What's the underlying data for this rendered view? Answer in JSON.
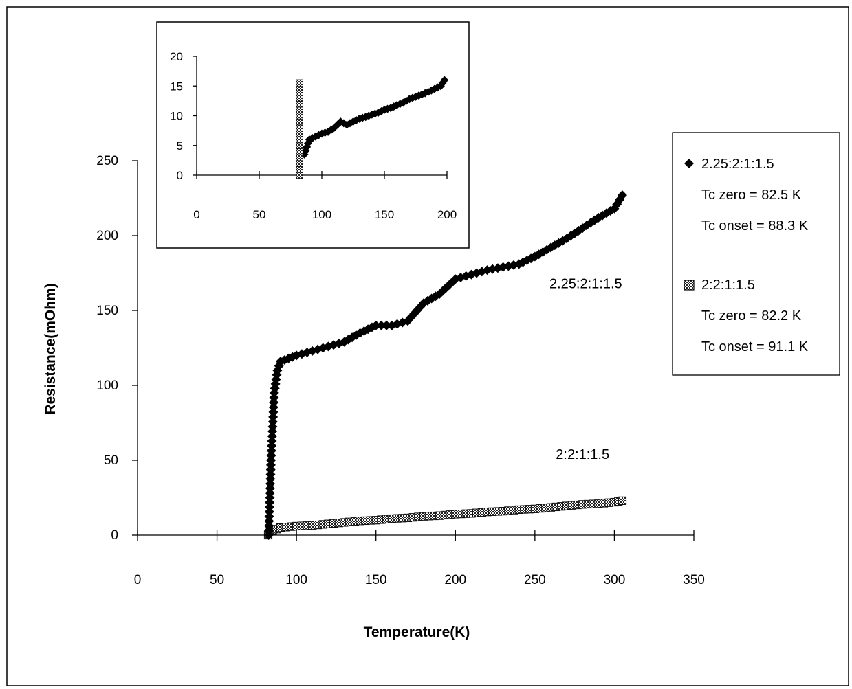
{
  "chart_data": [
    {
      "type": "scatter",
      "xlabel": "Temperature(K)",
      "ylabel": "Resistance(mOhm)",
      "xlim": [
        0,
        350
      ],
      "ylim": [
        0,
        250
      ],
      "xticks": [
        0,
        50,
        100,
        150,
        200,
        250,
        300,
        350
      ],
      "yticks": [
        0,
        50,
        100,
        150,
        200,
        250
      ],
      "legend": {
        "position": "right",
        "entries": [
          {
            "marker": "diamond",
            "label": "2.25:2:1:1.5",
            "tc_zero": "Tc zero = 82.5 K",
            "tc_onset": "Tc onset = 88.3 K"
          },
          {
            "marker": "hatched-square",
            "label": "2:2:1:1.5",
            "tc_zero": "Tc zero = 82.2 K",
            "tc_onset": "Tc onset = 91.1 K"
          }
        ]
      },
      "annotations": [
        {
          "text": "2.25:2:1:1.5",
          "x": 282,
          "y": 165
        },
        {
          "text": "2:2:1:1.5",
          "x": 280,
          "y": 51
        }
      ],
      "series": [
        {
          "name": "2.25:2:1:1.5",
          "marker": "diamond",
          "x": [
            82.5,
            84,
            86,
            88,
            90,
            95,
            100,
            110,
            120,
            130,
            140,
            150,
            160,
            170,
            180,
            190,
            200,
            210,
            220,
            230,
            240,
            250,
            260,
            270,
            280,
            290,
            300,
            305
          ],
          "y": [
            0,
            50,
            95,
            110,
            116,
            118,
            120,
            123,
            126,
            129,
            135,
            140,
            140,
            143,
            155,
            161,
            171,
            174,
            177,
            179,
            181,
            186,
            192,
            198,
            205,
            212,
            218,
            227
          ]
        },
        {
          "name": "2:2:1:1.5",
          "marker": "hatched-square",
          "x": [
            82.2,
            85,
            90,
            100,
            110,
            120,
            130,
            140,
            150,
            160,
            170,
            180,
            190,
            200,
            210,
            220,
            230,
            240,
            250,
            260,
            270,
            280,
            290,
            300,
            305
          ],
          "y": [
            0,
            3,
            5,
            6,
            6.5,
            7.5,
            8.5,
            9.5,
            10,
            11,
            11.5,
            12.5,
            13,
            14,
            14.5,
            15.5,
            16,
            17,
            17.5,
            18.5,
            19.5,
            20.5,
            21,
            22,
            23
          ]
        }
      ]
    },
    {
      "type": "scatter",
      "role": "inset",
      "xlim": [
        0,
        200
      ],
      "ylim": [
        0,
        20
      ],
      "xticks": [
        0,
        50,
        100,
        150,
        200
      ],
      "yticks": [
        0,
        5,
        10,
        15,
        20
      ],
      "series": [
        {
          "name": "2.25:2:1:1.5",
          "marker": "diamond",
          "x": [
            86,
            90,
            95,
            100,
            105,
            110,
            115,
            120,
            125,
            130,
            135,
            140,
            145,
            150,
            155,
            160,
            165,
            170,
            175,
            180,
            185,
            190,
            195,
            198
          ],
          "y": [
            3.5,
            6,
            6.5,
            7,
            7.3,
            8,
            9,
            8.5,
            9,
            9.5,
            9.8,
            10.2,
            10.5,
            11,
            11.3,
            11.8,
            12.2,
            12.8,
            13.2,
            13.6,
            14,
            14.5,
            15,
            16
          ]
        },
        {
          "name": "2:2:1:1.5",
          "marker": "hatched-square",
          "x": [
            82.2,
            82.2,
            82.2,
            82.2,
            82.2,
            82.2,
            82.2,
            82.2,
            82.2,
            82.2,
            82.2,
            82.2,
            82.2,
            82.2,
            82.2,
            82.2
          ],
          "y": [
            0,
            1,
            2,
            3,
            4,
            5,
            6,
            7,
            8,
            9,
            10,
            11,
            12,
            13,
            14,
            15.5
          ]
        }
      ]
    }
  ]
}
